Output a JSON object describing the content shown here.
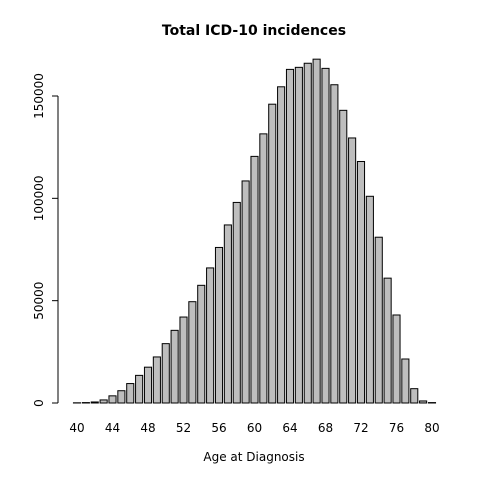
{
  "chart_data": {
    "type": "bar",
    "title": "Total ICD-10 incidences",
    "xlabel": "Age at Diagnosis",
    "ylabel": "",
    "categories": [
      40,
      41,
      42,
      43,
      44,
      45,
      46,
      47,
      48,
      49,
      50,
      51,
      52,
      53,
      54,
      55,
      56,
      57,
      58,
      59,
      60,
      61,
      62,
      63,
      64,
      65,
      66,
      67,
      68,
      69,
      70,
      71,
      72,
      73,
      74,
      75,
      76,
      77,
      78,
      79,
      80
    ],
    "values": [
      100,
      200,
      500,
      1500,
      3500,
      6000,
      9500,
      13500,
      17500,
      22500,
      29000,
      35500,
      42000,
      49500,
      57500,
      66000,
      76000,
      87000,
      98000,
      108500,
      120500,
      131500,
      146000,
      154500,
      163000,
      164000,
      166000,
      168000,
      163500,
      155500,
      143000,
      129500,
      118000,
      101000,
      81000,
      61000,
      43000,
      21500,
      7000,
      1000,
      200
    ],
    "x_tick_labels": [
      "40",
      "44",
      "48",
      "52",
      "56",
      "60",
      "64",
      "68",
      "72",
      "76",
      "80"
    ],
    "y_ticks": [
      "0",
      "50000",
      "100000",
      "150000"
    ],
    "ylim": [
      0,
      170000
    ],
    "grid": false
  }
}
